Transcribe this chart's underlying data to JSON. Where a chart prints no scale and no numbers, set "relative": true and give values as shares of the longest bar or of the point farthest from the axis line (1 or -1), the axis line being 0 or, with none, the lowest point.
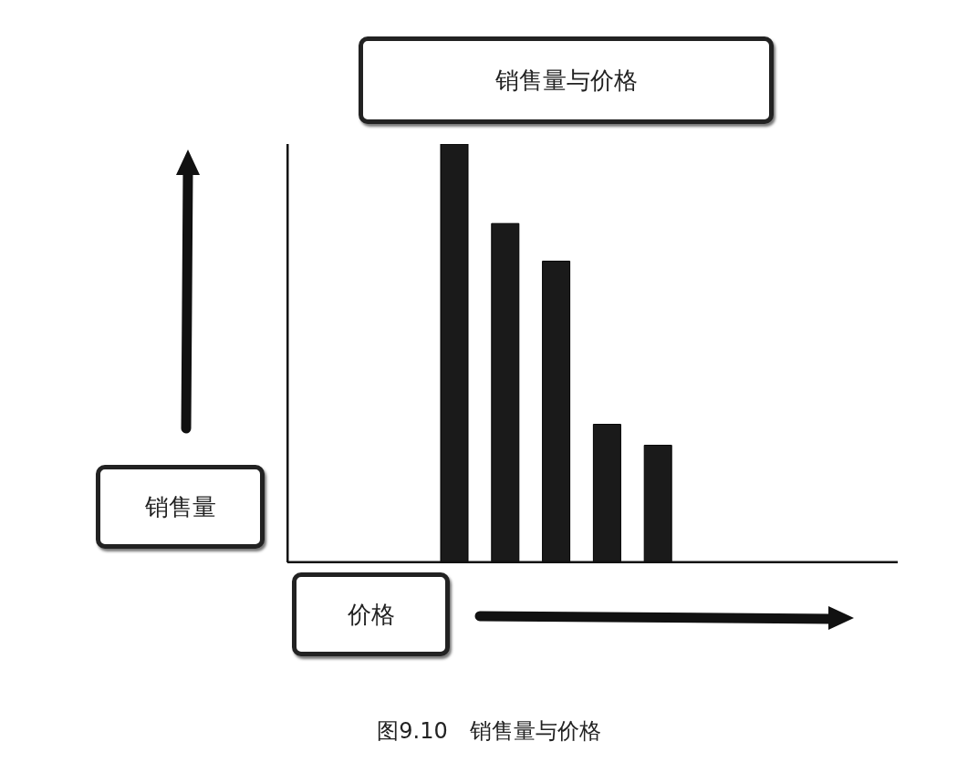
{
  "chart_data": {
    "type": "bar",
    "title": "销售量与价格",
    "xlabel": "价格",
    "annotations": [
      "销售量",
      "图9.10　销售量与价格"
    ],
    "relative": true,
    "categories": [
      null,
      null,
      null,
      null,
      null
    ],
    "values": [
      1,
      0.81,
      0.72,
      0.33,
      0.28
    ],
    "color": "#1a1a1a"
  }
}
